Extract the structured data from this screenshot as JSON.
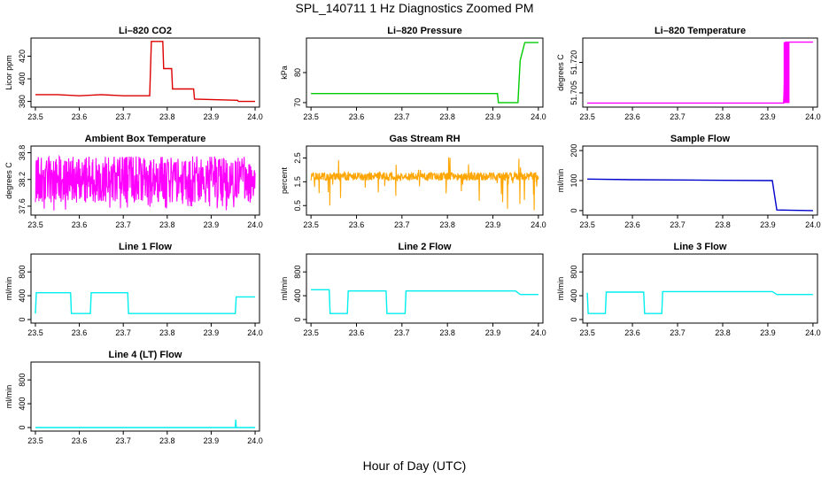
{
  "title": "SPL_140711  1 Hz Diagnostics Zoomed PM",
  "xlabel": "Hour of Day (UTC)",
  "chart_data": [
    {
      "type": "line",
      "title": "Li–820 CO2",
      "ylabel": "Licor ppm",
      "color": "#dd0000",
      "xticks": [
        "23.5",
        "23.6",
        "23.7",
        "23.8",
        "23.9",
        "24.0"
      ],
      "yticks": [
        "380",
        "400",
        "420"
      ],
      "xlim": [
        23.49,
        24.01
      ],
      "ylim": [
        375,
        436
      ],
      "x": [
        23.5,
        23.55,
        23.6,
        23.65,
        23.7,
        23.75,
        23.76,
        23.764,
        23.79,
        23.792,
        23.81,
        23.812,
        23.86,
        23.862,
        23.96,
        23.962,
        24.0
      ],
      "y": [
        386,
        386,
        385,
        386,
        385,
        385,
        385,
        433,
        433,
        409,
        409,
        391,
        391,
        382,
        381,
        380,
        380
      ]
    },
    {
      "type": "line",
      "title": "Li–820 Pressure",
      "ylabel": "kPa",
      "color": "#00cc00",
      "xticks": [
        "23.5",
        "23.6",
        "23.7",
        "23.8",
        "23.9",
        "24.0"
      ],
      "yticks": [
        "70",
        "80"
      ],
      "xlim": [
        23.49,
        24.01
      ],
      "ylim": [
        68.5,
        91.5
      ],
      "x": [
        23.5,
        23.6,
        23.7,
        23.8,
        23.9,
        23.91,
        23.912,
        23.955,
        23.96,
        23.97,
        24.0
      ],
      "y": [
        73,
        73,
        73,
        73,
        73,
        73,
        70,
        70,
        84,
        90,
        90
      ]
    },
    {
      "type": "line",
      "title": "Li–820 Temperature",
      "ylabel": "degrees C",
      "color": "#ff00ff",
      "xticks": [
        "23.5",
        "23.6",
        "23.7",
        "23.8",
        "23.9",
        "24.0"
      ],
      "yticks": [
        "51.705",
        "51.720"
      ],
      "xlim": [
        23.49,
        24.01
      ],
      "ylim": [
        51.698,
        51.732
      ],
      "x": [
        23.5,
        23.6,
        23.7,
        23.8,
        23.9,
        23.935,
        23.94,
        23.945,
        23.95,
        24.0
      ],
      "y": [
        51.7,
        51.7,
        51.7,
        51.7,
        51.7,
        51.7,
        51.73,
        51.73,
        51.73,
        51.73
      ],
      "band": [
        23.935,
        23.948
      ]
    },
    {
      "type": "line",
      "title": "Ambient Box Temperature",
      "ylabel": "degrees C",
      "color": "#ff00ff",
      "xticks": [
        "23.5",
        "23.6",
        "23.7",
        "23.8",
        "23.9",
        "24.0"
      ],
      "yticks": [
        "37.6",
        "38.2",
        "38.8"
      ],
      "xlim": [
        23.49,
        24.01
      ],
      "ylim": [
        37.4,
        38.95
      ],
      "noise": {
        "lo": 37.7,
        "hi": 38.75,
        "base": 37.68,
        "top": 38.72,
        "spikes_low": 37.5
      }
    },
    {
      "type": "line",
      "title": "Gas Stream RH",
      "ylabel": "percent",
      "color": "#ffa500",
      "xticks": [
        "23.5",
        "23.6",
        "23.7",
        "23.8",
        "23.9",
        "24.0"
      ],
      "yticks": [
        "0.5",
        "1.5",
        "2.5"
      ],
      "xlim": [
        23.49,
        24.01
      ],
      "ylim": [
        0.1,
        3.0
      ],
      "noise": {
        "lo": 1.2,
        "hi": 1.9,
        "base": 1.55,
        "top": 1.9,
        "spikes_low": 0.3,
        "spikes_high": 2.6
      }
    },
    {
      "type": "line",
      "title": "Sample Flow",
      "ylabel": "ml/min",
      "color": "#0000cc",
      "xticks": [
        "23.5",
        "23.6",
        "23.7",
        "23.8",
        "23.9",
        "24.0"
      ],
      "yticks": [
        "0",
        "100",
        "200"
      ],
      "xlim": [
        23.49,
        24.01
      ],
      "ylim": [
        -15,
        215
      ],
      "x": [
        23.5,
        23.6,
        23.7,
        23.8,
        23.91,
        23.915,
        23.92,
        24.0
      ],
      "y": [
        105,
        103,
        102,
        101,
        100,
        50,
        2,
        0
      ]
    },
    {
      "type": "line",
      "title": "Line 1 Flow",
      "ylabel": "ml/min",
      "color": "#00eeee",
      "xticks": [
        "23.5",
        "23.6",
        "23.7",
        "23.8",
        "23.9",
        "24.0"
      ],
      "yticks": [
        "0",
        "400",
        "800"
      ],
      "xlim": [
        23.49,
        24.01
      ],
      "ylim": [
        -60,
        1100
      ],
      "x": [
        23.5,
        23.502,
        23.58,
        23.582,
        23.625,
        23.627,
        23.71,
        23.712,
        23.955,
        23.957,
        24.0
      ],
      "y": [
        100,
        450,
        450,
        100,
        100,
        450,
        450,
        100,
        100,
        380,
        380
      ]
    },
    {
      "type": "line",
      "title": "Line 2 Flow",
      "ylabel": "ml/min",
      "color": "#00eeee",
      "xticks": [
        "23.5",
        "23.6",
        "23.7",
        "23.8",
        "23.9",
        "24.0"
      ],
      "yticks": [
        "0",
        "400",
        "800"
      ],
      "xlim": [
        23.49,
        24.01
      ],
      "ylim": [
        -60,
        1100
      ],
      "x": [
        23.5,
        23.54,
        23.542,
        23.58,
        23.582,
        23.665,
        23.667,
        23.707,
        23.709,
        23.95,
        23.96,
        24.0
      ],
      "y": [
        500,
        500,
        100,
        100,
        480,
        480,
        100,
        100,
        480,
        480,
        420,
        420
      ]
    },
    {
      "type": "line",
      "title": "Line 3 Flow",
      "ylabel": "ml/min",
      "color": "#00eeee",
      "xticks": [
        "23.5",
        "23.6",
        "23.7",
        "23.8",
        "23.9",
        "24.0"
      ],
      "yticks": [
        "0",
        "400",
        "800"
      ],
      "xlim": [
        23.49,
        24.01
      ],
      "ylim": [
        -60,
        1100
      ],
      "x": [
        23.5,
        23.502,
        23.54,
        23.542,
        23.625,
        23.627,
        23.665,
        23.667,
        23.91,
        23.92,
        24.0
      ],
      "y": [
        450,
        100,
        100,
        460,
        460,
        100,
        100,
        470,
        470,
        420,
        420
      ]
    },
    {
      "type": "line",
      "title": "Line 4 (LT) Flow",
      "ylabel": "ml/min",
      "color": "#00eeee",
      "xticks": [
        "23.5",
        "23.6",
        "23.7",
        "23.8",
        "23.9",
        "24.0"
      ],
      "yticks": [
        "0",
        "400",
        "800"
      ],
      "xlim": [
        23.49,
        24.01
      ],
      "ylim": [
        -60,
        1100
      ],
      "x": [
        23.5,
        23.6,
        23.7,
        23.8,
        23.9,
        23.955,
        23.956,
        23.957,
        23.958,
        24.0
      ],
      "y": [
        0,
        0,
        0,
        0,
        0,
        0,
        130,
        0,
        0,
        0
      ]
    }
  ]
}
